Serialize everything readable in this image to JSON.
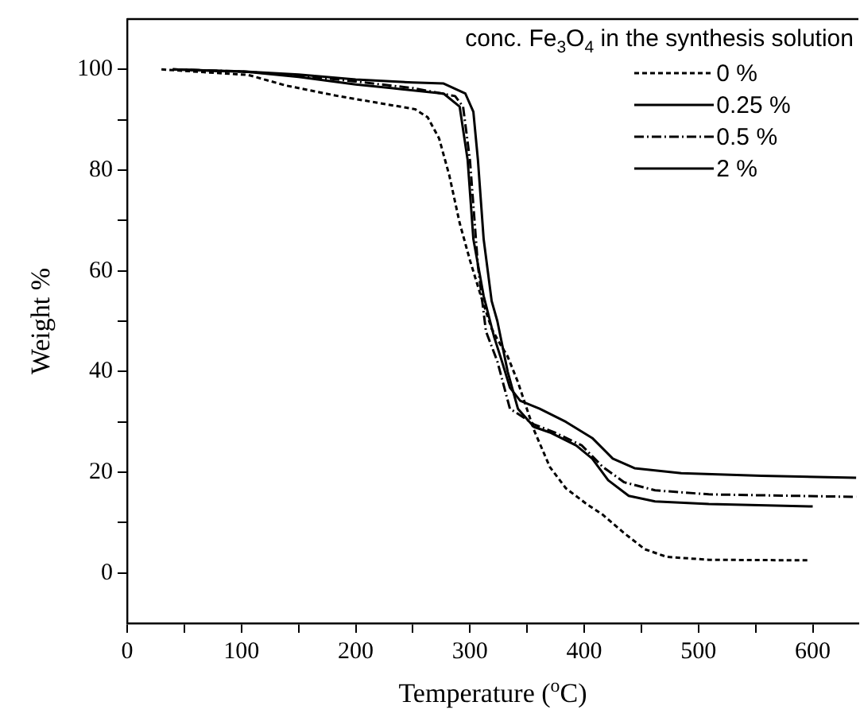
{
  "chart_data": {
    "type": "line",
    "xlabel": "Temperature ($^{o}$C)",
    "ylabel": "Weight %",
    "legend_title": "conc. Fe$_{3}$O$_{4}$ in the synthesis solution",
    "xlim": [
      0,
      640
    ],
    "ylim": [
      -10,
      110
    ],
    "xticks": [
      0,
      {
        "value": 50,
        "label": null
      },
      100,
      {
        "value": 150,
        "label": null
      },
      200,
      {
        "value": 250,
        "label": null
      },
      300,
      {
        "value": 350,
        "label": null
      },
      400,
      {
        "value": 450,
        "label": null
      },
      500,
      {
        "value": 550,
        "label": null
      },
      600
    ],
    "yticks": [
      0,
      {
        "value": 10,
        "label": null
      },
      20,
      {
        "value": 30,
        "label": null
      },
      40,
      {
        "value": 50,
        "label": null
      },
      60,
      {
        "value": 70,
        "label": null
      },
      80,
      {
        "value": 90,
        "label": null
      },
      100
    ],
    "grid": false,
    "legend": "top right",
    "marker": "none",
    "series": [
      {
        "name": "0 %",
        "color": "#000000",
        "line_style": "dashed",
        "x": [
          30,
          106,
          139,
          185,
          252,
          263,
          273,
          282,
          291,
          300,
          310,
          319,
          325,
          333,
          342,
          356,
          370,
          384,
          402,
          416,
          435,
          453,
          472,
          509,
          596
        ],
        "values": [
          100,
          98.9,
          96.8,
          94.7,
          92.1,
          90.5,
          86.3,
          78.9,
          69.5,
          62.1,
          54.7,
          48.5,
          46,
          43,
          37.9,
          28.4,
          21,
          16.8,
          13.7,
          11.6,
          7.9,
          4.7,
          3.2,
          2.6,
          2.5
        ]
      },
      {
        "name": "0.25 %",
        "color": "#000000",
        "line_style": "solid",
        "x": [
          40,
          100,
          150,
          200,
          250,
          277,
          296,
          303,
          307,
          312,
          319,
          324,
          333,
          342,
          356,
          370,
          393,
          407,
          421,
          439,
          462,
          509,
          600
        ],
        "values": [
          100,
          99.6,
          99,
          98,
          97.4,
          97.2,
          95.2,
          91.6,
          82,
          66.3,
          54,
          50,
          40,
          32.6,
          29,
          27.9,
          25.3,
          22.7,
          18.4,
          15.3,
          14.2,
          13.7,
          13.2
        ]
      },
      {
        "name": "0.5 %",
        "color": "#000000",
        "line_style": "dashdot",
        "x": [
          40,
          100,
          150,
          200,
          250,
          287,
          294,
          300,
          307,
          314,
          324,
          335,
          342,
          356,
          374,
          398,
          416,
          435,
          462,
          509,
          638
        ],
        "values": [
          100,
          99.6,
          98.8,
          97.6,
          96.3,
          94.7,
          92.6,
          82,
          61,
          48,
          42,
          32.6,
          31.6,
          29.5,
          27.9,
          25.3,
          21.1,
          18,
          16.4,
          15.6,
          15.1
        ]
      },
      {
        "name": "2 %",
        "color": "#000000",
        "line_style": "solid",
        "x": [
          40,
          106,
          150,
          200,
          231,
          277,
          291,
          298,
          303,
          312,
          321,
          328,
          335,
          344,
          361,
          384,
          407,
          425,
          444,
          485,
          555,
          638
        ],
        "values": [
          100,
          99.5,
          98.5,
          97,
          96.3,
          95.2,
          92.6,
          82,
          66.3,
          55,
          47,
          42,
          36.8,
          34.2,
          32.6,
          30,
          26.8,
          22.7,
          20.8,
          19.8,
          19.3,
          18.9
        ]
      }
    ]
  }
}
